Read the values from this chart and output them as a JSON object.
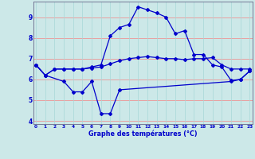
{
  "xlabel": "Graphe des températures (°C)",
  "bg_color": "#cce8e8",
  "line_color": "#0000cc",
  "yticks": [
    4,
    5,
    6,
    7,
    8,
    9
  ],
  "xticks": [
    0,
    1,
    2,
    3,
    4,
    5,
    6,
    7,
    8,
    9,
    10,
    11,
    12,
    13,
    14,
    15,
    16,
    17,
    18,
    19,
    20,
    21,
    22,
    23
  ],
  "line1_x": [
    0,
    1,
    3,
    4,
    5,
    6,
    7,
    8,
    9,
    21,
    22,
    23
  ],
  "line1_y": [
    6.7,
    6.2,
    5.9,
    5.4,
    5.4,
    5.9,
    4.35,
    4.35,
    5.5,
    5.9,
    6.0,
    6.4
  ],
  "line2_x": [
    0,
    1,
    2,
    3,
    4,
    5,
    6,
    7,
    8,
    9,
    10,
    11,
    12,
    13,
    14,
    15,
    16,
    17,
    18,
    19,
    20,
    21,
    22,
    23
  ],
  "line2_y": [
    6.7,
    6.2,
    6.5,
    6.5,
    6.5,
    6.5,
    6.55,
    6.6,
    6.75,
    6.9,
    7.0,
    7.05,
    7.1,
    7.05,
    7.0,
    7.0,
    6.95,
    7.0,
    7.0,
    7.05,
    6.7,
    6.5,
    6.5,
    6.5
  ],
  "line3_x": [
    0,
    1,
    2,
    3,
    4,
    5,
    6,
    7,
    8,
    9,
    10,
    11,
    12,
    13,
    14,
    15,
    16,
    17,
    18,
    19,
    20,
    21,
    22,
    23
  ],
  "line3_y": [
    6.7,
    6.2,
    6.5,
    6.5,
    6.5,
    6.5,
    6.6,
    6.7,
    8.1,
    8.5,
    8.65,
    9.5,
    9.35,
    9.2,
    9.0,
    8.2,
    8.35,
    7.2,
    7.2,
    6.7,
    6.6,
    5.95,
    6.0,
    6.4
  ],
  "xlim": [
    -0.3,
    23.3
  ],
  "ylim": [
    3.85,
    9.75
  ]
}
